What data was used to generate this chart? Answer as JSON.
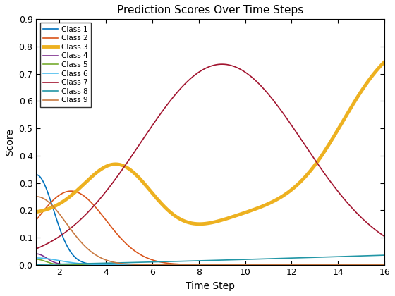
{
  "title": "Prediction Scores Over Time Steps",
  "xlabel": "Time Step",
  "ylabel": "Score",
  "xlim": [
    1,
    16
  ],
  "ylim": [
    0,
    0.9
  ],
  "yticks": [
    0.0,
    0.1,
    0.2,
    0.3,
    0.4,
    0.5,
    0.6,
    0.7,
    0.8,
    0.9
  ],
  "xticks": [
    2,
    4,
    6,
    8,
    10,
    12,
    14,
    16
  ],
  "classes": [
    {
      "label": "Class 1",
      "color": "#0072BD",
      "lw": 1.2
    },
    {
      "label": "Class 2",
      "color": "#D95319",
      "lw": 1.2
    },
    {
      "label": "Class 3",
      "color": "#EDB120",
      "lw": 3.5
    },
    {
      "label": "Class 4",
      "color": "#7E2F8E",
      "lw": 1.2
    },
    {
      "label": "Class 5",
      "color": "#77AC30",
      "lw": 1.2
    },
    {
      "label": "Class 6",
      "color": "#4DBEEE",
      "lw": 1.2
    },
    {
      "label": "Class 7",
      "color": "#A2142F",
      "lw": 1.2
    },
    {
      "label": "Class 8",
      "color": "#0072BD",
      "lw": 1.2
    },
    {
      "label": "Class 9",
      "color": "#D95319",
      "lw": 1.2
    }
  ]
}
